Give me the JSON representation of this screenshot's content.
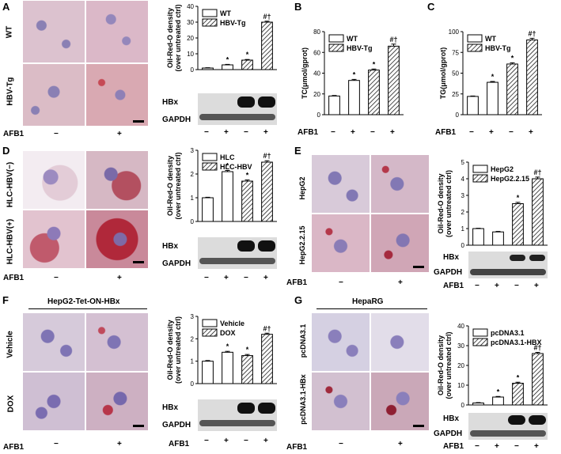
{
  "panels": {
    "A": {
      "label": "A",
      "rows": [
        "WT",
        "HBV-Tg"
      ],
      "afb_label": "AFB1",
      "afb_marks": [
        "−",
        "+"
      ],
      "blot": {
        "rows": [
          "HBx",
          "GAPDH"
        ]
      },
      "chart_afb": [
        "−",
        "+",
        "−",
        "+"
      ]
    },
    "B": {
      "label": "B",
      "chart_afb_label": "AFB1",
      "chart_afb": [
        "−",
        "+",
        "−",
        "+"
      ]
    },
    "C": {
      "label": "C",
      "chart_afb_label": "AFB1",
      "chart_afb": [
        "−",
        "+",
        "−",
        "+"
      ]
    },
    "D": {
      "label": "D",
      "rows": [
        "HLC-HBV(−)",
        "HLC-HBV(+)"
      ],
      "afb_label": "AFB1",
      "afb_marks": [
        "−",
        "+"
      ],
      "blot": {
        "rows": [
          "HBx",
          "GAPDH"
        ]
      },
      "chart_afb": [
        "−",
        "+",
        "−",
        "+"
      ]
    },
    "E": {
      "label": "E",
      "rows": [
        "HepG2",
        "HepG2.2.15"
      ],
      "afb_label": "AFB1",
      "afb_marks": [
        "−",
        "+"
      ],
      "blot": {
        "rows": [
          "HBx",
          "GAPDH"
        ]
      },
      "chart_afb_label": "AFB1",
      "chart_afb": [
        "−",
        "+",
        "−",
        "+"
      ]
    },
    "F": {
      "label": "F",
      "title": "HepG2-Tet-ON-HBx",
      "rows": [
        "Vehicle",
        "DOX"
      ],
      "afb_label": "AFB1",
      "afb_marks": [
        "−",
        "+"
      ],
      "blot": {
        "rows": [
          "HBx",
          "GAPDH"
        ]
      },
      "chart_afb_label": "AFB1",
      "chart_afb": [
        "−",
        "+",
        "−",
        "+"
      ]
    },
    "G": {
      "label": "G",
      "title": "HepaRG",
      "rows": [
        "pcDNA3.1",
        "pcDNA3.1-HBx"
      ],
      "afb_label": "AFB1",
      "afb_marks": [
        "−",
        "+"
      ],
      "blot": {
        "rows": [
          "HBx",
          "GAPDH"
        ]
      },
      "chart_afb_label": "AFB1",
      "chart_afb": [
        "−",
        "+",
        "−",
        "+"
      ]
    }
  },
  "chart_data": [
    {
      "id": "A",
      "type": "bar",
      "ylabel": "Oil-Red-O density\n(over untreated ctrl)",
      "ylim": [
        0,
        40
      ],
      "yticks": [
        0,
        10,
        20,
        30,
        40
      ],
      "series": [
        {
          "name": "WT",
          "pattern": "open"
        },
        {
          "name": "HBV-Tg",
          "pattern": "hatch"
        }
      ],
      "values": [
        1,
        3,
        6,
        30
      ],
      "errors": [
        0.2,
        0.3,
        0.4,
        0.6
      ],
      "patterns": [
        "open",
        "open",
        "hatch",
        "hatch"
      ],
      "marks": [
        "",
        "*",
        "*",
        "#†"
      ]
    },
    {
      "id": "B",
      "type": "bar",
      "ylabel": "TC(μmol/gprot)",
      "ylim": [
        0,
        80
      ],
      "yticks": [
        0,
        20,
        40,
        60,
        80
      ],
      "series": [
        {
          "name": "WT",
          "pattern": "open"
        },
        {
          "name": "HBV-Tg",
          "pattern": "hatch"
        }
      ],
      "values": [
        18,
        33,
        43,
        66
      ],
      "errors": [
        0.5,
        1.0,
        1.0,
        2.0
      ],
      "patterns": [
        "open",
        "open",
        "hatch",
        "hatch"
      ],
      "marks": [
        "",
        "*",
        "*",
        "#†"
      ]
    },
    {
      "id": "C",
      "type": "bar",
      "ylabel": "TG(μmol/gprot)",
      "ylim": [
        0,
        100
      ],
      "yticks": [
        0,
        25,
        50,
        75,
        100
      ],
      "series": [
        {
          "name": "WT",
          "pattern": "open"
        },
        {
          "name": "HBV-Tg",
          "pattern": "hatch"
        }
      ],
      "values": [
        22,
        39,
        61,
        90
      ],
      "errors": [
        0.5,
        1.0,
        1.5,
        2.0
      ],
      "patterns": [
        "open",
        "open",
        "hatch",
        "hatch"
      ],
      "marks": [
        "",
        "*",
        "*",
        "#†"
      ]
    },
    {
      "id": "D",
      "type": "bar",
      "ylabel": "Oil-Red-O density\n(over untreated ctrl)",
      "ylim": [
        0,
        3
      ],
      "yticks": [
        0,
        1,
        2,
        3
      ],
      "series": [
        {
          "name": "HLC",
          "pattern": "open"
        },
        {
          "name": "HLC-HBV",
          "pattern": "hatch"
        }
      ],
      "values": [
        1,
        2.1,
        1.7,
        2.5
      ],
      "errors": [
        0.02,
        0.05,
        0.05,
        0.06
      ],
      "patterns": [
        "open",
        "open",
        "hatch",
        "hatch"
      ],
      "marks": [
        "",
        "*",
        "*",
        "#†"
      ]
    },
    {
      "id": "E",
      "type": "bar",
      "ylabel": "Oil-Red-O density\n(over untreated ctrl)",
      "ylim": [
        0,
        5
      ],
      "yticks": [
        0,
        1,
        2,
        3,
        4,
        5
      ],
      "series": [
        {
          "name": "HepG2",
          "pattern": "open"
        },
        {
          "name": "HepG2.2.15",
          "pattern": "hatch"
        }
      ],
      "values": [
        1,
        0.8,
        2.5,
        4
      ],
      "errors": [
        0.02,
        0.03,
        0.08,
        0.1
      ],
      "patterns": [
        "open",
        "open",
        "hatch",
        "hatch"
      ],
      "marks": [
        "",
        "",
        "*",
        "#†"
      ]
    },
    {
      "id": "F",
      "type": "bar",
      "ylabel": "Oil-Red-O density\n(over untreated ctrl)",
      "ylim": [
        0,
        3
      ],
      "yticks": [
        0,
        1,
        2,
        3
      ],
      "series": [
        {
          "name": "Vehicle",
          "pattern": "open"
        },
        {
          "name": "DOX",
          "pattern": "hatch"
        }
      ],
      "values": [
        1,
        1.4,
        1.25,
        2.2
      ],
      "errors": [
        0.03,
        0.04,
        0.05,
        0.05
      ],
      "patterns": [
        "open",
        "open",
        "hatch",
        "hatch"
      ],
      "marks": [
        "",
        "*",
        "*",
        "#†"
      ]
    },
    {
      "id": "G",
      "type": "bar",
      "ylabel": "Oil-Red-O density\n(over untreated ctrl)",
      "ylim": [
        0,
        40
      ],
      "yticks": [
        0,
        10,
        20,
        30,
        40
      ],
      "series": [
        {
          "name": "pcDNA3.1",
          "pattern": "open"
        },
        {
          "name": "pcDNA3.1-HBX",
          "pattern": "hatch"
        }
      ],
      "values": [
        1,
        4,
        11,
        26
      ],
      "errors": [
        0.2,
        0.3,
        0.5,
        0.6
      ],
      "patterns": [
        "open",
        "open",
        "hatch",
        "hatch"
      ],
      "marks": [
        "",
        "*",
        "*",
        "#†"
      ]
    }
  ]
}
